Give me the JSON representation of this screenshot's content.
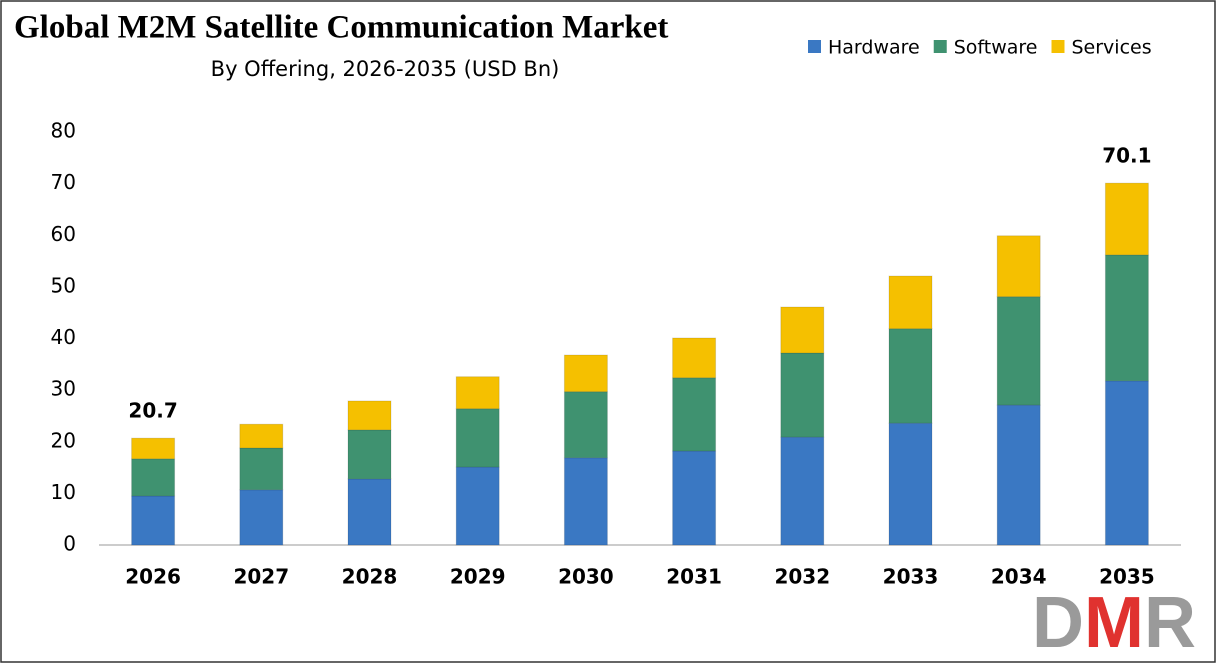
{
  "chart_data": {
    "type": "stacked_bar",
    "title": "Global M2M Satellite Communication Market",
    "subtitle": "By Offering, 2026-2035 (USD Bn)",
    "categories": [
      "2026",
      "2027",
      "2028",
      "2029",
      "2030",
      "2031",
      "2032",
      "2033",
      "2034",
      "2035"
    ],
    "series": [
      {
        "name": "Hardware",
        "color": "#3a78c3",
        "values": [
          9.5,
          10.7,
          12.8,
          15.1,
          16.9,
          18.2,
          20.9,
          23.6,
          27.1,
          31.8
        ]
      },
      {
        "name": "Software",
        "color": "#3f9270",
        "values": [
          7.2,
          8.1,
          9.5,
          11.3,
          12.8,
          14.2,
          16.3,
          18.3,
          21.0,
          24.4
        ]
      },
      {
        "name": "Services",
        "color": "#f5c000",
        "values": [
          4.0,
          4.6,
          5.6,
          6.2,
          7.1,
          7.7,
          8.9,
          10.2,
          11.8,
          13.9
        ]
      }
    ],
    "totals": [
      20.7,
      null,
      null,
      null,
      null,
      null,
      null,
      null,
      null,
      70.1
    ],
    "ylim": [
      0,
      80
    ],
    "yticks": [
      0,
      10,
      20,
      30,
      40,
      50,
      60,
      70,
      80
    ],
    "grid": false,
    "legend": "top-right",
    "logo": "DMR"
  }
}
